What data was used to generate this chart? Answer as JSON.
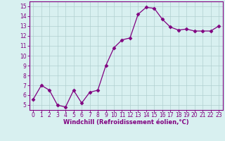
{
  "x": [
    0,
    1,
    2,
    3,
    4,
    5,
    6,
    7,
    8,
    9,
    10,
    11,
    12,
    13,
    14,
    15,
    16,
    17,
    18,
    19,
    20,
    21,
    22,
    23
  ],
  "y": [
    5.6,
    7.0,
    6.5,
    5.0,
    4.8,
    6.5,
    5.2,
    6.3,
    6.5,
    9.0,
    10.8,
    11.6,
    11.8,
    14.2,
    14.9,
    14.8,
    13.7,
    12.9,
    12.6,
    12.7,
    12.5,
    12.5,
    12.5,
    13.0
  ],
  "line_color": "#800080",
  "marker": "D",
  "marker_size": 2.5,
  "bg_color": "#d8f0f0",
  "grid_color": "#b0d0d0",
  "xlabel": "Windchill (Refroidissement éolien,°C)",
  "xlabel_color": "#800080",
  "ylim": [
    4.5,
    15.5
  ],
  "yticks": [
    5,
    6,
    7,
    8,
    9,
    10,
    11,
    12,
    13,
    14,
    15
  ],
  "xlim": [
    -0.5,
    23.5
  ],
  "xticks": [
    0,
    1,
    2,
    3,
    4,
    5,
    6,
    7,
    8,
    9,
    10,
    11,
    12,
    13,
    14,
    15,
    16,
    17,
    18,
    19,
    20,
    21,
    22,
    23
  ],
  "tick_fontsize": 5.5,
  "xlabel_fontsize": 6.0
}
